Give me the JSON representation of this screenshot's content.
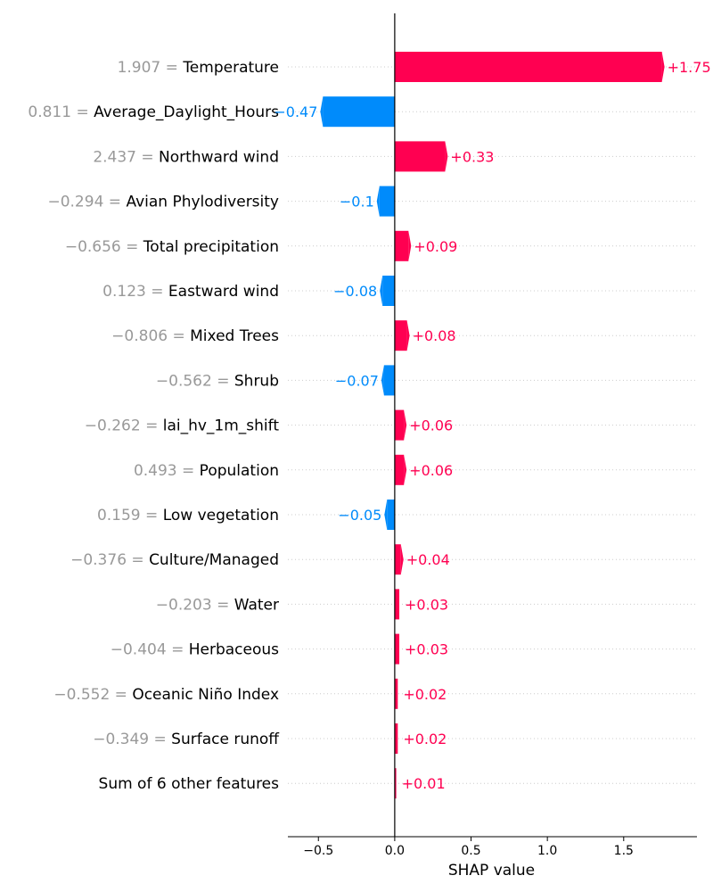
{
  "chart_data": {
    "type": "bar",
    "title": "",
    "xlabel": "SHAP value",
    "ylabel": "",
    "xlim": [
      -0.7,
      1.98
    ],
    "x_ticks": [
      {
        "value": -0.5,
        "label": "−0.5"
      },
      {
        "value": 0.0,
        "label": "0.0"
      },
      {
        "value": 0.5,
        "label": "0.5"
      },
      {
        "value": 1.0,
        "label": "1.0"
      },
      {
        "value": 1.5,
        "label": "1.5"
      }
    ],
    "grid": "dotted horizontal",
    "positive_color": "#ff0051",
    "negative_color": "#008bfb",
    "feature_value_color": "#999999",
    "features": [
      {
        "value": "1.907",
        "name": "Temperature",
        "shap": 1.75,
        "label": "+1.75"
      },
      {
        "value": "0.811",
        "name": "Average_Daylight_Hours",
        "shap": -0.47,
        "label": "−0.47"
      },
      {
        "value": "2.437",
        "name": "Northward wind",
        "shap": 0.33,
        "label": "+0.33"
      },
      {
        "value": "−0.294",
        "name": "Avian Phylodiversity",
        "shap": -0.1,
        "label": "−0.1"
      },
      {
        "value": "−0.656",
        "name": "Total precipitation",
        "shap": 0.09,
        "label": "+0.09"
      },
      {
        "value": "0.123",
        "name": "Eastward wind",
        "shap": -0.08,
        "label": "−0.08"
      },
      {
        "value": "−0.806",
        "name": "Mixed Trees",
        "shap": 0.08,
        "label": "+0.08"
      },
      {
        "value": "−0.562",
        "name": "Shrub",
        "shap": -0.07,
        "label": "−0.07"
      },
      {
        "value": "−0.262",
        "name": "lai_hv_1m_shift",
        "shap": 0.06,
        "label": "+0.06"
      },
      {
        "value": "0.493",
        "name": "Population",
        "shap": 0.06,
        "label": "+0.06"
      },
      {
        "value": "0.159",
        "name": "Low vegetation",
        "shap": -0.05,
        "label": "−0.05"
      },
      {
        "value": "−0.376",
        "name": "Culture/Managed",
        "shap": 0.04,
        "label": "+0.04"
      },
      {
        "value": "−0.203",
        "name": "Water",
        "shap": 0.03,
        "label": "+0.03"
      },
      {
        "value": "−0.404",
        "name": "Herbaceous",
        "shap": 0.03,
        "label": "+0.03"
      },
      {
        "value": "−0.552",
        "name": "Oceanic Niño Index",
        "shap": 0.02,
        "label": "+0.02"
      },
      {
        "value": "−0.349",
        "name": "Surface runoff",
        "shap": 0.02,
        "label": "+0.02"
      },
      {
        "value": "",
        "name": "Sum of 6 other features",
        "shap": 0.01,
        "label": "+0.01"
      }
    ]
  }
}
